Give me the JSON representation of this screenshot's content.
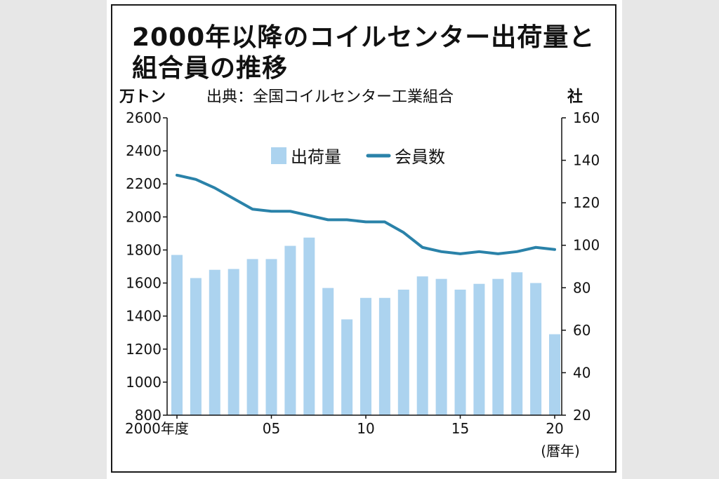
{
  "title": {
    "line1": "2000年以降のコイルセンター出荷量と",
    "line2": "組合員の推移"
  },
  "units": {
    "left": "万トン",
    "right": "社"
  },
  "source": "出典：全国コイルセンター工業組合",
  "colors": {
    "bar": "#acd3ef",
    "line": "#2a82a9",
    "axis": "#111111"
  },
  "chart_data": {
    "type": "bar",
    "x_start_label": "2000年度",
    "x_end_note": "(暦年)",
    "categories": [
      "2000",
      "2001",
      "2002",
      "2003",
      "2004",
      "2005",
      "2006",
      "2007",
      "2008",
      "2009",
      "2010",
      "2011",
      "2012",
      "2013",
      "2014",
      "2015",
      "2016",
      "2017",
      "2018",
      "2019",
      "2020"
    ],
    "x_tick_labels": [
      {
        "index": 0,
        "label": "2000年度"
      },
      {
        "index": 5,
        "label": "05"
      },
      {
        "index": 10,
        "label": "10"
      },
      {
        "index": 15,
        "label": "15"
      },
      {
        "index": 20,
        "label": "20"
      }
    ],
    "y_left": {
      "min": 800,
      "max": 2600,
      "ticks": [
        800,
        1000,
        1200,
        1400,
        1600,
        1800,
        2000,
        2200,
        2400,
        2600
      ]
    },
    "y_right": {
      "min": 20,
      "max": 160,
      "ticks": [
        20,
        40,
        60,
        80,
        100,
        120,
        140,
        160
      ]
    },
    "series": [
      {
        "name": "出荷量",
        "type": "bar",
        "axis": "left",
        "values": [
          1770,
          1630,
          1680,
          1685,
          1745,
          1745,
          1825,
          1875,
          1570,
          1380,
          1510,
          1510,
          1560,
          1640,
          1625,
          1560,
          1595,
          1625,
          1665,
          1600,
          1290
        ]
      },
      {
        "name": "会員数",
        "type": "line",
        "axis": "right",
        "values": [
          133,
          131,
          127,
          122,
          117,
          116,
          116,
          114,
          112,
          112,
          111,
          111,
          106,
          99,
          97,
          96,
          97,
          96,
          97,
          99,
          98
        ]
      }
    ],
    "legend_position": "top-center",
    "grid": false
  }
}
